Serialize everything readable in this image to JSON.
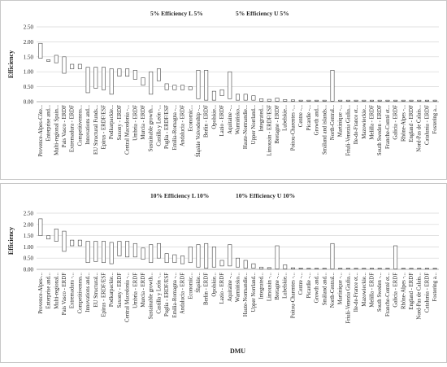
{
  "chart_data": [
    {
      "type": "bar",
      "subtype": "floating-range",
      "legend": [
        "5% Efficiency L 5%",
        "5% Efficiency U 5%"
      ],
      "legend_position": "top-center",
      "ylabel": "Efficiency",
      "xlabel": "",
      "ylim": [
        0,
        2.5
      ],
      "yticks": [
        "0.00",
        "0.50",
        "1.00",
        "1.50",
        "2.00",
        "2.50"
      ],
      "grid": true,
      "categories": [
        "Provence-Alpes-Côte...",
        "Enterprise and...",
        "Multi-regional Spain...",
        "Pais Vasco - ERDF",
        "Extremadura - ERDF",
        "Competitiveness...",
        "Innovations and...",
        "EU Structural Funds...",
        "Epirus - ERDF/ESF",
        "Podkarpackie...",
        "Saxony - ERDF",
        "Central Macedonia -...",
        "Umbria - ERDF",
        "Murcia - ERDF",
        "Sustainable growth...",
        "Castilla y León -...",
        "Puglia - ERDF/ESF",
        "Emilia-Romagna -...",
        "Andalucia - ERDF",
        "Economic...",
        "Śląskie Voivodeship -...",
        "Berlin - ERDF",
        "Opolskie...",
        "Lazio - ERDF",
        "Aquitaine -...",
        "Warmińsko...",
        "Haute-Normandie...",
        "Upper Norrland...",
        "Integrated...",
        "Limousin - ERDF/ESF",
        "Bretagne - ERDF",
        "Lubelskie...",
        "Poitou-Charentes -...",
        "Centre -...",
        "Picardie -...",
        "Growth and...",
        "Småland and islands...",
        "North-Central...",
        "Martinique -...",
        "Friuli-Venezia Giulia...",
        "Ile-de-France et...",
        "Mazowieckie...",
        "Melilla - ERDF",
        "South Sweden - ERDF",
        "Franche-Comté et...",
        "Galicia - ERDF",
        "Rhône-Alpes -...",
        "England - ERDF",
        "Nord-Pas de Calais...",
        "Catalunia - ERDF",
        "Fostering a..."
      ],
      "series": [
        {
          "name": "5% Efficiency L 5%",
          "values": [
            1.45,
            1.35,
            1.3,
            0.95,
            1.1,
            1.1,
            0.3,
            0.45,
            0.4,
            0.25,
            0.85,
            0.85,
            0.75,
            0.55,
            0.25,
            0.7,
            0.4,
            0.4,
            0.4,
            0.4,
            0.1,
            0.05,
            0.05,
            0.2,
            0.1,
            0.05,
            0.05,
            0.05,
            0.02,
            0.02,
            0.02,
            0.02,
            0.02,
            0.02,
            0.02,
            0.02,
            0.02,
            0.02,
            0.02,
            0.02,
            0.02,
            0.02,
            0.02,
            0.02,
            0.02,
            0.02,
            0.02,
            0.02,
            0.02,
            0.02,
            0.02
          ]
        },
        {
          "name": "5% Efficiency U 5%",
          "values": [
            1.95,
            1.4,
            1.55,
            1.5,
            1.25,
            1.25,
            1.15,
            1.15,
            1.15,
            1.1,
            1.1,
            1.1,
            1.05,
            0.8,
            1.0,
            1.1,
            0.6,
            0.55,
            0.55,
            0.5,
            1.05,
            1.05,
            0.35,
            0.4,
            1.0,
            0.25,
            0.25,
            0.2,
            0.1,
            0.08,
            0.12,
            0.07,
            0.06,
            0.05,
            0.05,
            0.05,
            0.05,
            1.05,
            0.05,
            0.05,
            0.05,
            0.05,
            0.05,
            0.05,
            0.05,
            0.05,
            0.05,
            0.05,
            0.05,
            0.05,
            0.05
          ]
        }
      ]
    },
    {
      "type": "bar",
      "subtype": "floating-range",
      "legend": [
        "10% Efficiency L 10%",
        "10% Efficiency U 10%"
      ],
      "legend_position": "top-center",
      "ylabel": "Efficiency",
      "xlabel": "DMU",
      "ylim": [
        0,
        2.5
      ],
      "yticks": [
        "0.00",
        "0.50",
        "1.00",
        "1.50",
        "2.00",
        "2.50"
      ],
      "grid": true,
      "categories": [
        "Provence-Alpes-...",
        "Enterprise and...",
        "Multi-regional...",
        "Pais Vasco - ERDF",
        "Extremadura -...",
        "Competitiveness...",
        "Innovations and...",
        "EU Structural...",
        "Epirus - ERDF/ESF",
        "Podkarpackie...",
        "Saxony - ERDF",
        "Central Macedonia -...",
        "Umbria - ERDF",
        "Murcia - ERDF",
        "Sustainable growth...",
        "Castilla y León -...",
        "Puglia - ERDF/ESF",
        "Emilia-Romagna -...",
        "Andalucia - ERDF",
        "Economic...",
        "Śląskie...",
        "Berlin - ERDF",
        "Opolskie...",
        "Lazio - ERDF",
        "Aquitaine -...",
        "Warmińsko...",
        "Haute-Normandie...",
        "Upper Norrland...",
        "Integrated...",
        "Limousin -...",
        "Bretagne -...",
        "Lubelskie...",
        "Poitou-Charentes -...",
        "Centre -...",
        "Picardie -...",
        "Growth and...",
        "Småland and...",
        "North-Central...",
        "Martinique -...",
        "Friuli-Venezia Giulia...",
        "Ile-de-France et...",
        "Mazowieckie...",
        "Melilla - ERDF",
        "South Sweden -...",
        "Franche-Comté et...",
        "Galicia - ERDF",
        "Rhône-Alpes -...",
        "England - ERDF",
        "Nord-Pas de Calais...",
        "Catalunia - ERDF",
        "Fostering a..."
      ],
      "series": [
        {
          "name": "10% Efficiency L 10%",
          "values": [
            1.5,
            1.35,
            1.25,
            0.8,
            1.05,
            1.05,
            0.3,
            0.35,
            0.3,
            0.25,
            0.6,
            0.55,
            0.55,
            0.45,
            0.3,
            0.5,
            0.3,
            0.3,
            0.25,
            0.3,
            0.1,
            0.05,
            0.1,
            0.15,
            0.15,
            0.1,
            0.05,
            0.05,
            0.02,
            0.02,
            0.02,
            0.02,
            0.02,
            0.02,
            0.02,
            0.02,
            0.02,
            0.02,
            0.02,
            0.02,
            0.02,
            0.02,
            0.02,
            0.02,
            0.02,
            0.02,
            0.02,
            0.02,
            0.02,
            0.02,
            0.02
          ]
        },
        {
          "name": "10% Efficiency U 10%",
          "values": [
            2.25,
            1.5,
            1.8,
            1.7,
            1.3,
            1.3,
            1.25,
            1.25,
            1.25,
            1.2,
            1.25,
            1.25,
            1.15,
            0.95,
            1.1,
            1.15,
            0.7,
            0.65,
            0.6,
            1.0,
            1.1,
            1.15,
            1.0,
            0.4,
            1.1,
            0.5,
            0.4,
            0.25,
            0.1,
            0.08,
            1.05,
            0.2,
            0.07,
            0.06,
            0.05,
            0.05,
            0.05,
            1.15,
            0.05,
            0.05,
            0.05,
            0.05,
            0.05,
            0.05,
            0.05,
            1.05,
            0.05,
            0.05,
            0.05,
            0.05,
            0.05
          ]
        }
      ]
    }
  ]
}
